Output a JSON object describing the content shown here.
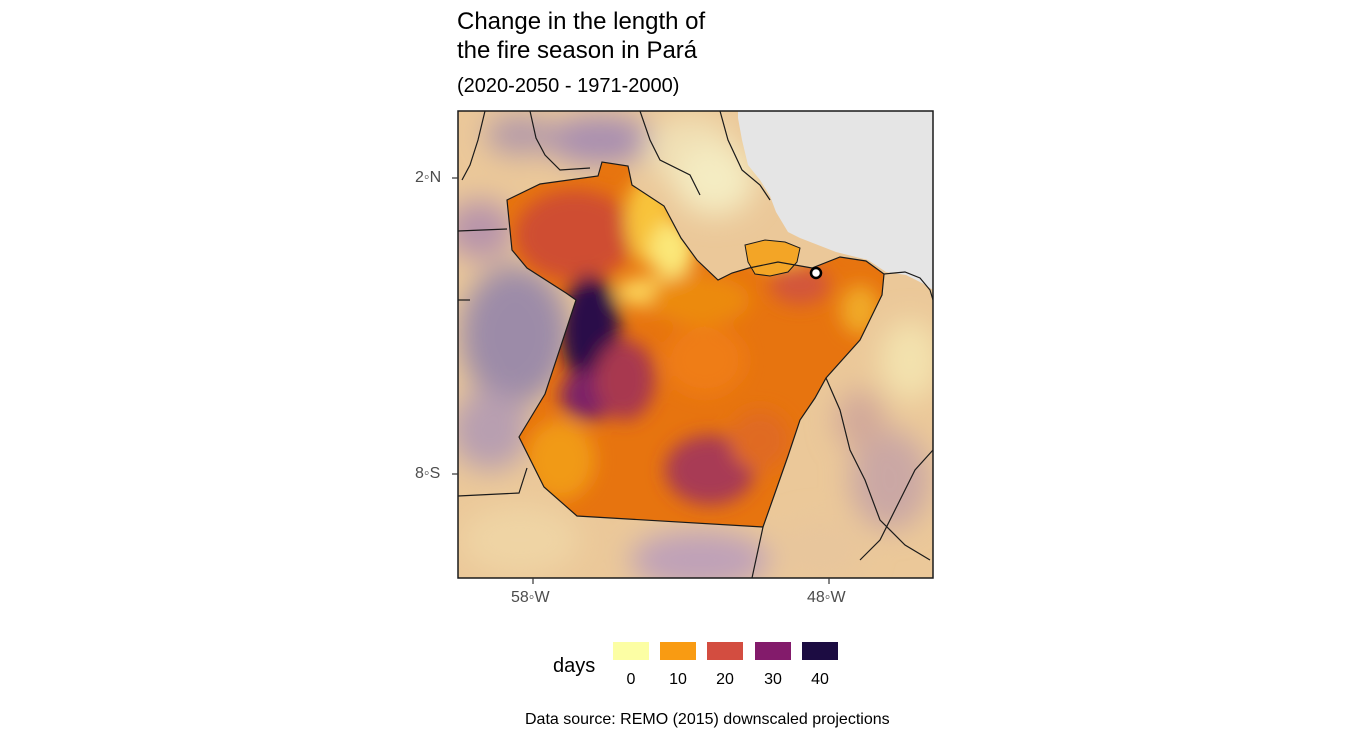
{
  "title": {
    "line1": "Change in the length of",
    "line2": "the fire season in Pará"
  },
  "subtitle": "(2020-2050 - 1971-2000)",
  "axes": {
    "y_ticks": [
      "2◦N",
      "8◦S"
    ],
    "x_ticks": [
      "58◦W",
      "48◦W"
    ]
  },
  "legend": {
    "title": "days",
    "labels": [
      "0",
      "10",
      "20",
      "30",
      "40"
    ],
    "colors": [
      "#fcfea4",
      "#f99b12",
      "#d34d40",
      "#831b6b",
      "#1c0c42"
    ]
  },
  "caption": "Data source: REMO (2015) downscaled projections",
  "map": {
    "ocean_color": "#e5e5e5",
    "outside_color": "#eac494",
    "region": "Pará",
    "marker": "city-marker"
  }
}
